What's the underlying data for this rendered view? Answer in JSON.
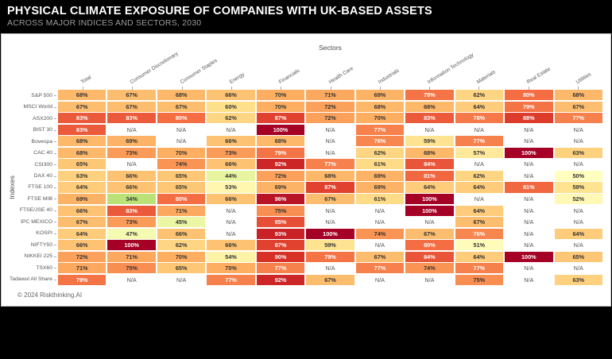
{
  "header": {
    "title": "PHYSICAL CLIMATE EXPOSURE OF COMPANIES WITH UK-BASED ASSETS",
    "subtitle": "ACROSS MAJOR INDICES AND SECTORS, 2030"
  },
  "footer": {
    "copyright": "© 2024 Riskthinking.AI"
  },
  "chart_data": {
    "type": "heatmap",
    "title": "Physical Climate Exposure of Companies with UK-Based Assets",
    "subtitle": "Across major indices and sectors, 2030",
    "xlabel": "Sectors",
    "ylabel": "Indexes",
    "na_label": "N/A",
    "value_suffix": "%",
    "colormap": "RdYlGn reversed (green=low, yellow=mid, dark red=high)",
    "domain": [
      0,
      100
    ],
    "columns": [
      "Total",
      "Consumer Discretionary",
      "Consumer Staples",
      "Energy",
      "Financials",
      "Health Care",
      "Industrials",
      "Information Technology",
      "Materials",
      "Real Estate",
      "Utilities"
    ],
    "rows": [
      "S&P 500",
      "MSCI World",
      "ASX200",
      "BIST 30",
      "Bovespa",
      "CAC 40",
      "CSI300",
      "DAX 40",
      "FTSE 100",
      "FTSE MIB",
      "FTSE/JSE 40",
      "IPC MEXICO",
      "KOSPI",
      "NIFTY50",
      "NIKKEI 225",
      "TSX60",
      "Tadawul All Share"
    ],
    "values": [
      [
        68,
        67,
        68,
        66,
        70,
        71,
        69,
        79,
        62,
        80,
        68
      ],
      [
        67,
        67,
        67,
        60,
        70,
        72,
        68,
        68,
        64,
        79,
        67
      ],
      [
        83,
        83,
        80,
        62,
        87,
        72,
        70,
        83,
        78,
        88,
        77
      ],
      [
        83,
        null,
        null,
        null,
        100,
        null,
        77,
        null,
        null,
        null,
        null
      ],
      [
        68,
        69,
        null,
        66,
        68,
        null,
        76,
        59,
        77,
        null,
        null
      ],
      [
        68,
        73,
        70,
        73,
        79,
        null,
        62,
        68,
        57,
        100,
        63
      ],
      [
        65,
        null,
        74,
        66,
        92,
        77,
        61,
        84,
        null,
        null,
        null
      ],
      [
        63,
        66,
        65,
        44,
        72,
        68,
        69,
        81,
        62,
        null,
        50
      ],
      [
        64,
        66,
        65,
        53,
        69,
        87,
        69,
        64,
        64,
        81,
        59
      ],
      [
        69,
        34,
        80,
        66,
        96,
        67,
        61,
        100,
        null,
        null,
        52
      ],
      [
        66,
        83,
        71,
        null,
        75,
        null,
        null,
        100,
        64,
        null,
        null
      ],
      [
        67,
        73,
        45,
        null,
        85,
        null,
        null,
        null,
        67,
        null,
        null
      ],
      [
        64,
        47,
        66,
        null,
        93,
        100,
        74,
        67,
        76,
        null,
        64
      ],
      [
        66,
        100,
        62,
        66,
        87,
        59,
        null,
        80,
        51,
        null,
        null
      ],
      [
        72,
        71,
        70,
        54,
        90,
        79,
        67,
        84,
        64,
        100,
        65
      ],
      [
        71,
        75,
        65,
        70,
        77,
        null,
        77,
        74,
        77,
        null,
        null
      ],
      [
        79,
        null,
        null,
        77,
        92,
        67,
        null,
        null,
        75,
        null,
        63
      ]
    ]
  }
}
